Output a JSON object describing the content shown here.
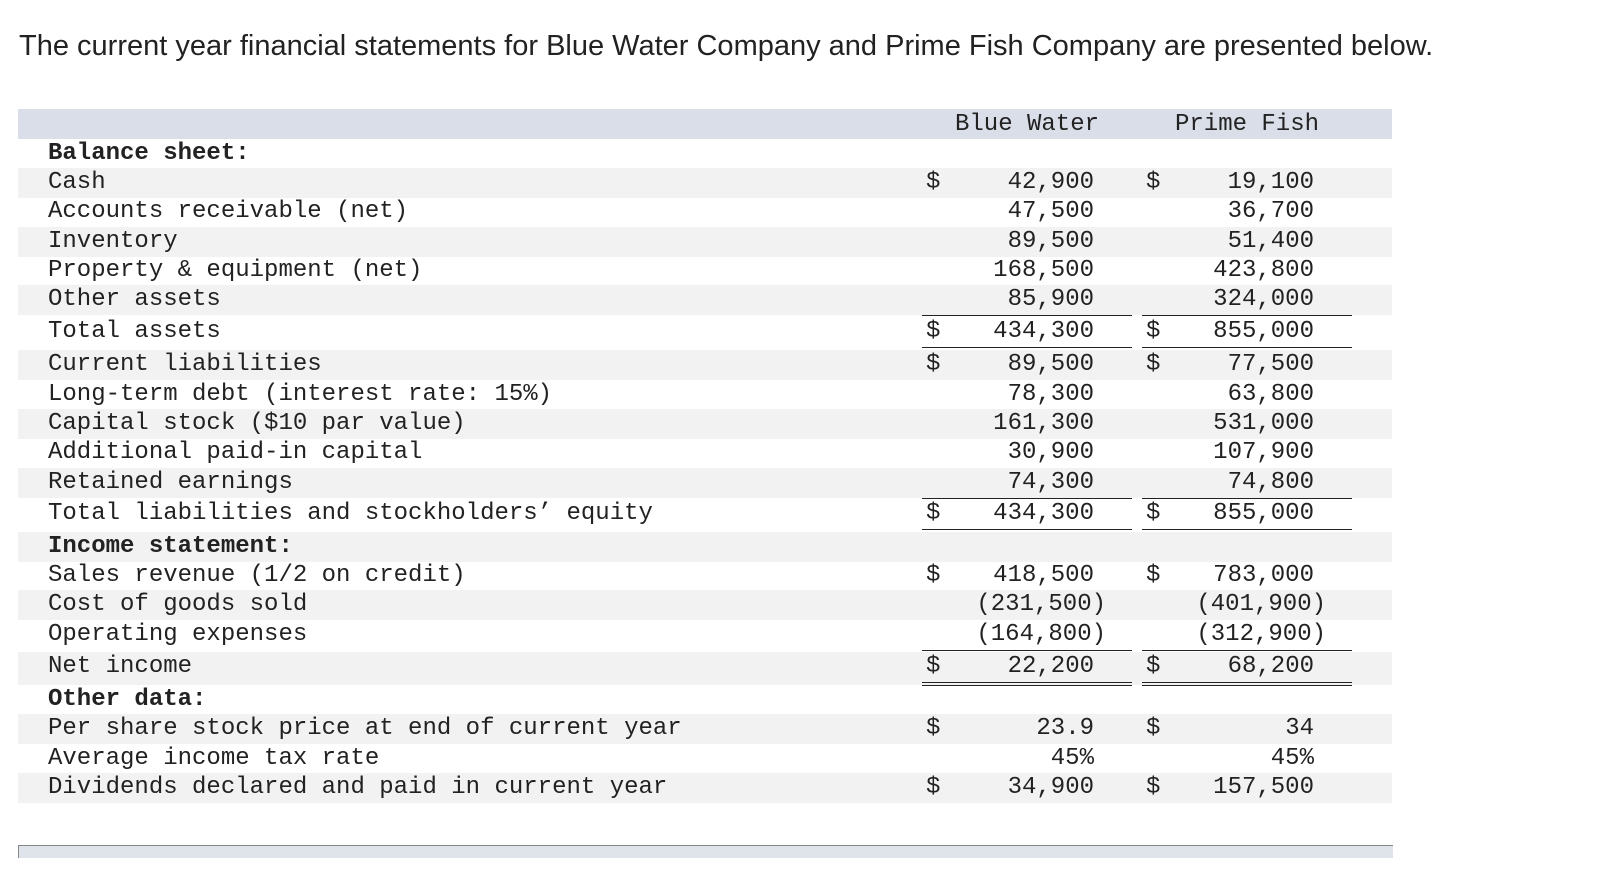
{
  "intro_text": "The current year financial statements for Blue Water Company and Prime Fish Company are presented below.",
  "columns": [
    "Blue Water",
    "Prime Fish"
  ],
  "rows": [
    {
      "label": "Balance sheet:",
      "section": true,
      "cells": [
        {
          "sign": "",
          "value": ""
        },
        {
          "sign": "",
          "value": ""
        }
      ]
    },
    {
      "label": "Cash",
      "cells": [
        {
          "sign": "$",
          "value": "42,900"
        },
        {
          "sign": "$",
          "value": "19,100"
        }
      ]
    },
    {
      "label": "Accounts receivable (net)",
      "cells": [
        {
          "sign": "",
          "value": "47,500"
        },
        {
          "sign": "",
          "value": "36,700"
        }
      ]
    },
    {
      "label": "Inventory",
      "cells": [
        {
          "sign": "",
          "value": "89,500"
        },
        {
          "sign": "",
          "value": "51,400"
        }
      ]
    },
    {
      "label": "Property & equipment (net)",
      "cells": [
        {
          "sign": "",
          "value": "168,500"
        },
        {
          "sign": "",
          "value": "423,800"
        }
      ]
    },
    {
      "label": "Other assets",
      "underline": "single",
      "cells": [
        {
          "sign": "",
          "value": "85,900"
        },
        {
          "sign": "",
          "value": "324,000"
        }
      ]
    },
    {
      "label": "Total assets",
      "underline": "double",
      "cells": [
        {
          "sign": "$",
          "value": "434,300"
        },
        {
          "sign": "$",
          "value": "855,000"
        }
      ]
    },
    {
      "label": "Current liabilities",
      "cells": [
        {
          "sign": "$",
          "value": "89,500"
        },
        {
          "sign": "$",
          "value": "77,500"
        }
      ]
    },
    {
      "label": "Long-term debt (interest rate: 15%)",
      "cells": [
        {
          "sign": "",
          "value": "78,300"
        },
        {
          "sign": "",
          "value": "63,800"
        }
      ]
    },
    {
      "label": "Capital stock ($10 par value)",
      "cells": [
        {
          "sign": "",
          "value": "161,300"
        },
        {
          "sign": "",
          "value": "531,000"
        }
      ]
    },
    {
      "label": "Additional paid-in capital",
      "cells": [
        {
          "sign": "",
          "value": "30,900"
        },
        {
          "sign": "",
          "value": "107,900"
        }
      ]
    },
    {
      "label": "Retained earnings",
      "underline": "single",
      "cells": [
        {
          "sign": "",
          "value": "74,300"
        },
        {
          "sign": "",
          "value": "74,800"
        }
      ]
    },
    {
      "label": "Total liabilities and stockholders’ equity",
      "underline": "double",
      "cells": [
        {
          "sign": "$",
          "value": "434,300"
        },
        {
          "sign": "$",
          "value": "855,000"
        }
      ]
    },
    {
      "label": "Income statement:",
      "section": true,
      "cells": [
        {
          "sign": "",
          "value": ""
        },
        {
          "sign": "",
          "value": ""
        }
      ]
    },
    {
      "label": "Sales revenue (1/2 on credit)",
      "cells": [
        {
          "sign": "$",
          "value": "418,500"
        },
        {
          "sign": "$",
          "value": "783,000"
        }
      ]
    },
    {
      "label": "Cost of goods sold",
      "paren": true,
      "cells": [
        {
          "sign": "",
          "value": "(231,500)"
        },
        {
          "sign": "",
          "value": "(401,900)"
        }
      ]
    },
    {
      "label": "Operating expenses",
      "paren": true,
      "underline": "single",
      "cells": [
        {
          "sign": "",
          "value": "(164,800)"
        },
        {
          "sign": "",
          "value": "(312,900)"
        }
      ]
    },
    {
      "label": "Net income",
      "underline": "double",
      "cells": [
        {
          "sign": "$",
          "value": "22,200"
        },
        {
          "sign": "$",
          "value": "68,200"
        }
      ]
    },
    {
      "label": "Other data:",
      "section": true,
      "cells": [
        {
          "sign": "",
          "value": ""
        },
        {
          "sign": "",
          "value": ""
        }
      ]
    },
    {
      "label": "Per share stock price at end of current year",
      "cells": [
        {
          "sign": "$",
          "value": "23.9"
        },
        {
          "sign": "$",
          "value": "34"
        }
      ]
    },
    {
      "label": "Average income tax rate",
      "cells": [
        {
          "sign": "",
          "value": "45%"
        },
        {
          "sign": "",
          "value": "45%"
        }
      ]
    },
    {
      "label": "Dividends declared and paid in current year",
      "cells": [
        {
          "sign": "$",
          "value": "34,900"
        },
        {
          "sign": "$",
          "value": "157,500"
        }
      ]
    }
  ]
}
